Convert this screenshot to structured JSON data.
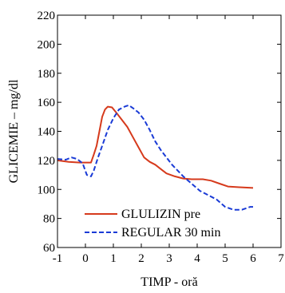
{
  "chart_data": {
    "type": "line",
    "title": "",
    "xlabel": "TIMP - oră",
    "ylabel": "GLICEMIE – mg/dl",
    "xlim": [
      -1,
      7
    ],
    "ylim": [
      60,
      220
    ],
    "x_ticks": [
      -1,
      0,
      1,
      2,
      3,
      4,
      5,
      6,
      7
    ],
    "y_ticks": [
      60,
      80,
      100,
      120,
      140,
      160,
      180,
      200,
      220
    ],
    "grid": false,
    "legend_position": "lower-left",
    "series": [
      {
        "name": "GLULIZIN pre",
        "color": "#d63a1c",
        "dash": "solid",
        "points": [
          [
            -1,
            120
          ],
          [
            -0.6,
            119
          ],
          [
            -0.2,
            118.5
          ],
          [
            0.2,
            118.5
          ],
          [
            0.3,
            124
          ],
          [
            0.4,
            130
          ],
          [
            0.5,
            140
          ],
          [
            0.6,
            150
          ],
          [
            0.7,
            155
          ],
          [
            0.8,
            157
          ],
          [
            0.95,
            156.5
          ],
          [
            1.1,
            153
          ],
          [
            1.3,
            148
          ],
          [
            1.5,
            143
          ],
          [
            1.7,
            136
          ],
          [
            1.9,
            129
          ],
          [
            2.1,
            122
          ],
          [
            2.3,
            119
          ],
          [
            2.5,
            117
          ],
          [
            2.7,
            114
          ],
          [
            2.9,
            111
          ],
          [
            3.2,
            109
          ],
          [
            3.5,
            107.5
          ],
          [
            3.8,
            107
          ],
          [
            4.2,
            107
          ],
          [
            4.5,
            106
          ],
          [
            4.8,
            104
          ],
          [
            5.1,
            102
          ],
          [
            5.5,
            101.5
          ],
          [
            6.0,
            101
          ]
        ]
      },
      {
        "name": "REGULAR 30 min",
        "color": "#1a3bd6",
        "dash": "dashed",
        "points": [
          [
            -1,
            121
          ],
          [
            -0.7,
            120.5
          ],
          [
            -0.5,
            122
          ],
          [
            -0.3,
            121
          ],
          [
            -0.1,
            118
          ],
          [
            0.05,
            110
          ],
          [
            0.2,
            109
          ],
          [
            0.3,
            113
          ],
          [
            0.45,
            122
          ],
          [
            0.6,
            130
          ],
          [
            0.8,
            141
          ],
          [
            1.0,
            149
          ],
          [
            1.2,
            155
          ],
          [
            1.4,
            157
          ],
          [
            1.55,
            158
          ],
          [
            1.7,
            156
          ],
          [
            1.9,
            153
          ],
          [
            2.1,
            148
          ],
          [
            2.3,
            141
          ],
          [
            2.5,
            133
          ],
          [
            2.7,
            127
          ],
          [
            2.9,
            122
          ],
          [
            3.1,
            117
          ],
          [
            3.3,
            113
          ],
          [
            3.5,
            109
          ],
          [
            3.8,
            104
          ],
          [
            4.1,
            99
          ],
          [
            4.4,
            96
          ],
          [
            4.7,
            93
          ],
          [
            5.0,
            88
          ],
          [
            5.3,
            86
          ],
          [
            5.6,
            86
          ],
          [
            5.9,
            88
          ],
          [
            6.0,
            88
          ]
        ]
      }
    ]
  }
}
